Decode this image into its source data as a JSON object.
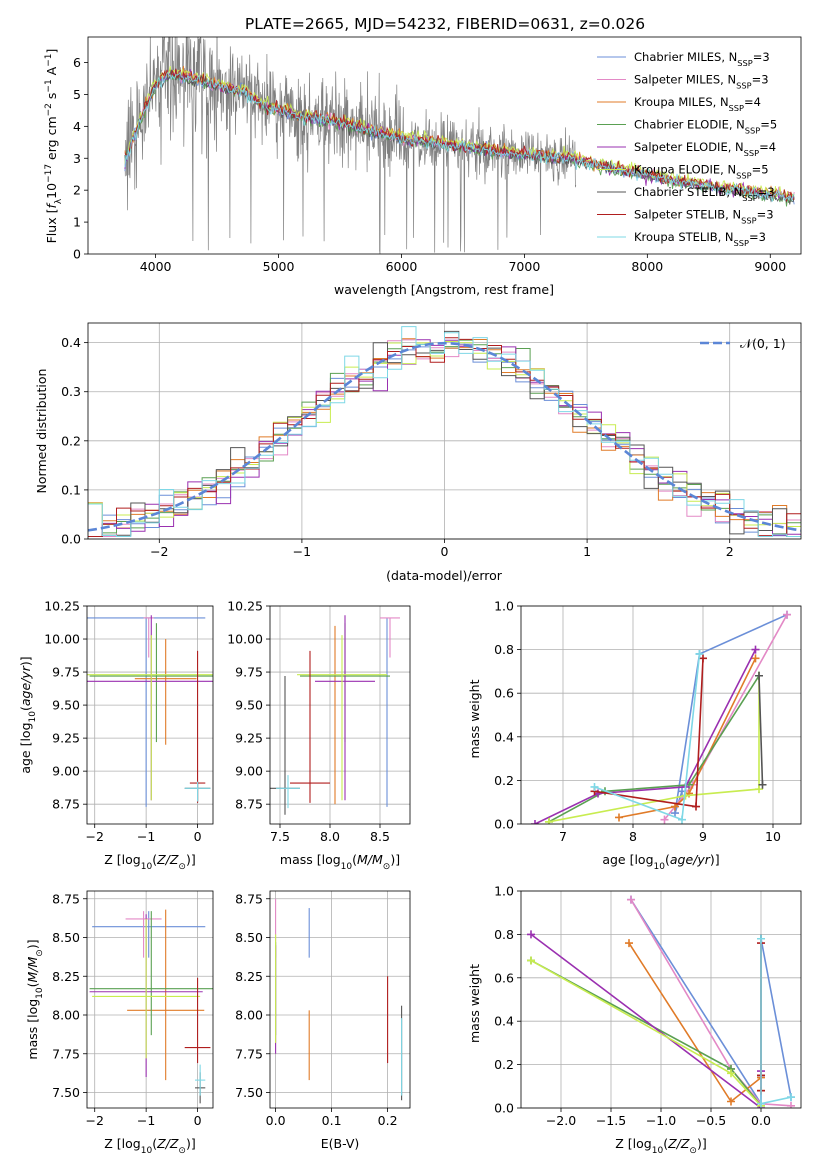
{
  "colors": {
    "Chabrier MILES": "#6b8fd8",
    "Salpeter MILES": "#e389c6",
    "Kroupa MILES": "#e07b28",
    "Chabrier ELODIE": "#5aa052",
    "Salpeter ELODIE": "#9a30b0",
    "Kroupa ELODIE": "#c8ec50",
    "Chabrier STELIB": "#555555",
    "Salpeter STELIB": "#b01e1e",
    "Kroupa STELIB": "#7fd8e6",
    "data": "#808080"
  },
  "models": [
    "Chabrier MILES",
    "Salpeter MILES",
    "Kroupa MILES",
    "Chabrier ELODIE",
    "Salpeter ELODIE",
    "Kroupa ELODIE",
    "Chabrier STELIB",
    "Salpeter STELIB",
    "Kroupa STELIB"
  ],
  "chart_data": [
    {
      "id": "spectrum",
      "type": "line",
      "title": "PLATE=2665, MJD=54232, FIBERID=0631, z=0.026",
      "xlabel": "wavelength [Angstrom, rest frame]",
      "ylabel": "Flux [f_λ 10^-17 erg cm^-2 s^-1 A^-1]",
      "xlim": [
        3450,
        9250
      ],
      "ylim": [
        0,
        6.8
      ],
      "xticks": [
        4000,
        5000,
        6000,
        7000,
        8000,
        9000
      ],
      "yticks": [
        0,
        1,
        2,
        3,
        4,
        5,
        6
      ],
      "legend_position": "top-right",
      "legend": [
        {
          "model": "Chabrier MILES",
          "n": "3"
        },
        {
          "model": "Salpeter MILES",
          "n": "3"
        },
        {
          "model": "Kroupa MILES",
          "n": "4"
        },
        {
          "model": "Chabrier ELODIE",
          "n": "5"
        },
        {
          "model": "Salpeter ELODIE",
          "n": "4"
        },
        {
          "model": "Kroupa ELODIE",
          "n": "5"
        },
        {
          "model": "Chabrier STELIB",
          "n": "3"
        },
        {
          "model": "Salpeter STELIB",
          "n": "3"
        },
        {
          "model": "Kroupa STELIB",
          "n": "3"
        }
      ],
      "model_curve": [
        [
          3750,
          2.9
        ],
        [
          3900,
          4.4
        ],
        [
          4000,
          5.3
        ],
        [
          4100,
          5.6
        ],
        [
          4300,
          5.5
        ],
        [
          4500,
          5.25
        ],
        [
          4700,
          5.1
        ],
        [
          4900,
          4.6
        ],
        [
          5000,
          4.5
        ],
        [
          5200,
          4.3
        ],
        [
          5500,
          4.1
        ],
        [
          5800,
          3.8
        ],
        [
          6000,
          3.6
        ],
        [
          6300,
          3.45
        ],
        [
          6600,
          3.3
        ],
        [
          7000,
          3.1
        ],
        [
          7400,
          2.95
        ],
        [
          7800,
          2.6
        ],
        [
          8200,
          2.3
        ],
        [
          8600,
          2.05
        ],
        [
          9000,
          1.85
        ],
        [
          9200,
          1.75
        ]
      ],
      "data_range": [
        3750,
        7420
      ]
    },
    {
      "id": "histogram",
      "type": "bar",
      "xlabel": "(data-model)/error",
      "ylabel": "Normed distribution",
      "xlim": [
        -2.5,
        2.5
      ],
      "ylim": [
        0,
        0.44
      ],
      "xticks": [
        -2,
        -1,
        0,
        1,
        2
      ],
      "yticks": [
        0.0,
        0.1,
        0.2,
        0.3,
        0.4
      ],
      "legend_position": "top-right",
      "normal_label": "𝒩(0, 1)",
      "normal_color": "#5b86d6",
      "bin_width": 0.1
    },
    {
      "id": "age_vs_Z",
      "type": "scatter",
      "xlabel": "Z [log10(Z/Z⊙)]",
      "ylabel": "age  [log10(age/yr)]",
      "xlim": [
        -2.15,
        0.3
      ],
      "ylim": [
        8.6,
        10.25
      ],
      "xticks": [
        -2,
        -1,
        0
      ],
      "yticks": [
        8.75,
        9.0,
        9.25,
        9.5,
        9.75,
        10.0,
        10.25
      ],
      "points": [
        {
          "model": "Chabrier MILES",
          "x": -1.0,
          "y": 10.16,
          "xerr": 1.15,
          "yerr": [
            1.43,
            0.0
          ]
        },
        {
          "model": "Salpeter MILES",
          "x": -0.95,
          "y": 10.16,
          "xerr": 0.1,
          "yerr": [
            0.3,
            0.0
          ]
        },
        {
          "model": "Kroupa MILES",
          "x": -0.62,
          "y": 9.7,
          "xerr": 0.6,
          "yerr": [
            0.5,
            0.3
          ]
        },
        {
          "model": "Chabrier ELODIE",
          "x": -0.8,
          "y": 9.72,
          "xerr": 1.3,
          "yerr": [
            0.5,
            0.4
          ]
        },
        {
          "model": "Salpeter ELODIE",
          "x": -0.9,
          "y": 9.68,
          "xerr": 1.35,
          "yerr": [
            0.9,
            0.5
          ]
        },
        {
          "model": "Kroupa ELODIE",
          "x": -0.9,
          "y": 9.73,
          "xerr": 1.3,
          "yerr": [
            0.95,
            0.3
          ]
        },
        {
          "model": "Chabrier STELIB",
          "x": 0.0,
          "y": 8.87,
          "xerr": 0.25,
          "yerr": [
            0.1,
            0.05
          ]
        },
        {
          "model": "Salpeter STELIB",
          "x": 0.0,
          "y": 8.91,
          "xerr": 0.15,
          "yerr": [
            0.15,
            1.0
          ]
        },
        {
          "model": "Kroupa STELIB",
          "x": 0.0,
          "y": 8.87,
          "xerr": 0.25,
          "yerr": [
            0.1,
            0.05
          ]
        }
      ]
    },
    {
      "id": "age_vs_mass",
      "type": "scatter",
      "xlabel": "mass [log10(M/M⊙)]",
      "ylabel": "",
      "xlim": [
        7.4,
        8.8
      ],
      "ylim": [
        8.6,
        10.25
      ],
      "xticks": [
        7.5,
        8.0,
        8.5
      ],
      "yticks": [
        8.75,
        9.0,
        9.25,
        9.5,
        9.75,
        10.0,
        10.25
      ],
      "points": [
        {
          "model": "Chabrier MILES",
          "x": 8.57,
          "y": 10.16,
          "xerr": 0.0,
          "yerr": [
            1.43,
            0.0
          ]
        },
        {
          "model": "Salpeter MILES",
          "x": 8.6,
          "y": 10.16,
          "xerr": 0.1,
          "yerr": [
            0.3,
            0.0
          ]
        },
        {
          "model": "Kroupa MILES",
          "x": 8.05,
          "y": 9.7,
          "xerr": 0.0,
          "yerr": [
            0.95,
            0.4
          ]
        },
        {
          "model": "Chabrier ELODIE",
          "x": 8.15,
          "y": 9.72,
          "xerr": 0.45,
          "yerr": [
            0.5,
            0.4
          ]
        },
        {
          "model": "Salpeter ELODIE",
          "x": 8.15,
          "y": 9.68,
          "xerr": 0.3,
          "yerr": [
            0.9,
            0.5
          ]
        },
        {
          "model": "Kroupa ELODIE",
          "x": 8.12,
          "y": 9.73,
          "xerr": 0.45,
          "yerr": [
            0.95,
            0.3
          ]
        },
        {
          "model": "Chabrier STELIB",
          "x": 7.55,
          "y": 8.87,
          "xerr": 0.15,
          "yerr": [
            0.2,
            0.85
          ]
        },
        {
          "model": "Salpeter STELIB",
          "x": 7.8,
          "y": 8.91,
          "xerr": 0.2,
          "yerr": [
            0.15,
            1.0
          ]
        },
        {
          "model": "Kroupa STELIB",
          "x": 7.58,
          "y": 8.87,
          "xerr": 0.12,
          "yerr": [
            0.15,
            0.1
          ]
        }
      ]
    },
    {
      "id": "weight_vs_age",
      "type": "line",
      "xlabel": "age  [log10(age/yr)]",
      "ylabel": "mass weight",
      "xlim": [
        6.4,
        10.4
      ],
      "ylim": [
        0,
        1.0
      ],
      "xticks": [
        7,
        8,
        9,
        10
      ],
      "yticks": [
        0.0,
        0.2,
        0.4,
        0.6,
        0.8,
        1.0
      ],
      "series": [
        {
          "model": "Chabrier MILES",
          "points": [
            [
              10.2,
              0.96
            ],
            [
              8.95,
              0.78
            ],
            [
              8.6,
              0.05
            ],
            [
              8.7,
              0.15
            ]
          ]
        },
        {
          "model": "Salpeter MILES",
          "points": [
            [
              10.2,
              0.96
            ],
            [
              8.85,
              0.18
            ],
            [
              8.45,
              0.02
            ]
          ]
        },
        {
          "model": "Kroupa MILES",
          "points": [
            [
              9.75,
              0.76
            ],
            [
              8.8,
              0.14
            ],
            [
              8.6,
              0.08
            ],
            [
              7.8,
              0.03
            ]
          ]
        },
        {
          "model": "Chabrier ELODIE",
          "points": [
            [
              9.8,
              0.68
            ],
            [
              8.8,
              0.18
            ],
            [
              7.6,
              0.15
            ],
            [
              6.8,
              0.01
            ]
          ]
        },
        {
          "model": "Salpeter ELODIE",
          "points": [
            [
              9.75,
              0.8
            ],
            [
              8.75,
              0.17
            ],
            [
              7.5,
              0.14
            ],
            [
              6.6,
              0.0
            ]
          ]
        },
        {
          "model": "Kroupa ELODIE",
          "points": [
            [
              9.8,
              0.68
            ],
            [
              9.8,
              0.16
            ],
            [
              8.75,
              0.13
            ],
            [
              6.8,
              0.01
            ]
          ]
        },
        {
          "model": "Chabrier STELIB",
          "points": [
            [
              9.85,
              0.18
            ],
            [
              9.8,
              0.68
            ]
          ]
        },
        {
          "model": "Salpeter STELIB",
          "points": [
            [
              9.0,
              0.76
            ],
            [
              8.9,
              0.08
            ],
            [
              7.45,
              0.15
            ]
          ]
        },
        {
          "model": "Kroupa STELIB",
          "points": [
            [
              8.95,
              0.78
            ],
            [
              8.7,
              0.02
            ],
            [
              7.45,
              0.17
            ]
          ]
        }
      ]
    },
    {
      "id": "mass_vs_Z",
      "type": "scatter",
      "xlabel": "Z [log10(Z/Z⊙)]",
      "ylabel": "mass [log10(M/M⊙)]",
      "xlim": [
        -2.15,
        0.3
      ],
      "ylim": [
        7.4,
        8.8
      ],
      "xticks": [
        -2,
        -1,
        0
      ],
      "yticks": [
        7.5,
        7.75,
        8.0,
        8.25,
        8.5,
        8.75
      ],
      "points": [
        {
          "model": "Chabrier MILES",
          "x": -0.95,
          "y": 8.57,
          "xerr": 1.1,
          "yerr": [
            0.2,
            0.1
          ]
        },
        {
          "model": "Salpeter MILES",
          "x": -1.05,
          "y": 8.62,
          "xerr": 0.35,
          "yerr": [
            0.25,
            0.05
          ]
        },
        {
          "model": "Kroupa MILES",
          "x": -0.62,
          "y": 8.03,
          "xerr": 0.75,
          "yerr": [
            0.45,
            0.65
          ]
        },
        {
          "model": "Chabrier ELODIE",
          "x": -0.9,
          "y": 8.17,
          "xerr": 1.2,
          "yerr": [
            0.3,
            0.5
          ]
        },
        {
          "model": "Salpeter ELODIE",
          "x": -1.0,
          "y": 8.15,
          "xerr": 1.1,
          "yerr": [
            0.55,
            0.5
          ]
        },
        {
          "model": "Kroupa ELODIE",
          "x": -1.0,
          "y": 8.12,
          "xerr": 1.05,
          "yerr": [
            0.4,
            0.5
          ]
        },
        {
          "model": "Chabrier STELIB",
          "x": 0.05,
          "y": 7.53,
          "xerr": 0.1,
          "yerr": [
            0.1,
            0.1
          ]
        },
        {
          "model": "Salpeter STELIB",
          "x": 0.0,
          "y": 7.79,
          "xerr": 0.25,
          "yerr": [
            0.1,
            0.45
          ]
        },
        {
          "model": "Kroupa STELIB",
          "x": 0.05,
          "y": 7.58,
          "xerr": 0.1,
          "yerr": [
            0.1,
            0.1
          ]
        }
      ]
    },
    {
      "id": "mass_vs_EBV",
      "type": "scatter",
      "xlabel": "E(B-V)",
      "ylabel": "",
      "xlim": [
        -0.01,
        0.24
      ],
      "ylim": [
        7.4,
        8.8
      ],
      "xticks": [
        0.0,
        0.1,
        0.2
      ],
      "yticks": [
        7.5,
        7.75,
        8.0,
        8.25,
        8.5,
        8.75
      ],
      "points": [
        {
          "model": "Chabrier MILES",
          "x": 0.06,
          "y": 8.57,
          "xerr": 0.0,
          "yerr": [
            0.2,
            0.12
          ]
        },
        {
          "model": "Salpeter MILES",
          "x": 0.0,
          "y": 8.62,
          "xerr": 0.0,
          "yerr": [
            0.25,
            0.13
          ]
        },
        {
          "model": "Kroupa MILES",
          "x": 0.06,
          "y": 8.03,
          "xerr": 0.0,
          "yerr": [
            0.45,
            0.0
          ]
        },
        {
          "model": "Chabrier ELODIE",
          "x": 0.0,
          "y": 8.17,
          "xerr": 0.0,
          "yerr": [
            0.3,
            0.3
          ]
        },
        {
          "model": "Salpeter ELODIE",
          "x": 0.0,
          "y": 8.15,
          "xerr": 0.0,
          "yerr": [
            0.4,
            0.3
          ]
        },
        {
          "model": "Kroupa ELODIE",
          "x": 0.0,
          "y": 8.12,
          "xerr": 0.0,
          "yerr": [
            0.3,
            0.4
          ]
        },
        {
          "model": "Chabrier STELIB",
          "x": 0.225,
          "y": 7.53,
          "xerr": 0.0,
          "yerr": [
            0.08,
            0.53
          ]
        },
        {
          "model": "Salpeter STELIB",
          "x": 0.2,
          "y": 7.79,
          "xerr": 0.0,
          "yerr": [
            0.1,
            0.46
          ]
        },
        {
          "model": "Kroupa STELIB",
          "x": 0.225,
          "y": 7.58,
          "xerr": 0.0,
          "yerr": [
            0.1,
            0.4
          ]
        }
      ]
    },
    {
      "id": "weight_vs_Z",
      "type": "line",
      "xlabel": "Z [log10(Z/Z⊙)]",
      "ylabel": "mass weight",
      "xlim": [
        -2.4,
        0.4
      ],
      "ylim": [
        0,
        1.0
      ],
      "xticks": [
        -2.0,
        -1.5,
        -1.0,
        -0.5,
        0.0
      ],
      "yticks": [
        0.0,
        0.2,
        0.4,
        0.6,
        0.8,
        1.0
      ],
      "series": [
        {
          "model": "Chabrier MILES",
          "points": [
            [
              -1.3,
              0.96
            ],
            [
              0.0,
              0.02
            ],
            [
              0.0,
              0.78
            ],
            [
              0.3,
              0.05
            ]
          ]
        },
        {
          "model": "Salpeter MILES",
          "points": [
            [
              -1.3,
              0.96
            ],
            [
              -0.3,
              0.18
            ],
            [
              0.0,
              0.02
            ],
            [
              0.3,
              0.01
            ]
          ]
        },
        {
          "model": "Kroupa MILES",
          "points": [
            [
              -1.32,
              0.76
            ],
            [
              -0.3,
              0.03
            ],
            [
              0.0,
              0.14
            ],
            [
              0.0,
              0.08
            ]
          ]
        },
        {
          "model": "Chabrier ELODIE",
          "points": [
            [
              -2.3,
              0.68
            ],
            [
              -0.3,
              0.18
            ],
            [
              0.0,
              0.01
            ]
          ]
        },
        {
          "model": "Salpeter ELODIE",
          "points": [
            [
              -2.3,
              0.8
            ],
            [
              0.0,
              0.0
            ],
            [
              0.0,
              0.17
            ]
          ]
        },
        {
          "model": "Kroupa ELODIE",
          "points": [
            [
              -2.3,
              0.68
            ],
            [
              -0.3,
              0.16
            ],
            [
              0.0,
              0.01
            ]
          ]
        },
        {
          "model": "Chabrier STELIB",
          "points": [
            [
              0.0,
              0.78
            ],
            [
              0.0,
              0.15
            ]
          ]
        },
        {
          "model": "Salpeter STELIB",
          "points": [
            [
              0.0,
              0.76
            ],
            [
              0.0,
              0.08
            ],
            [
              0.0,
              0.15
            ]
          ]
        },
        {
          "model": "Kroupa STELIB",
          "points": [
            [
              0.0,
              0.78
            ],
            [
              0.0,
              0.02
            ],
            [
              0.3,
              0.05
            ]
          ]
        }
      ]
    }
  ]
}
